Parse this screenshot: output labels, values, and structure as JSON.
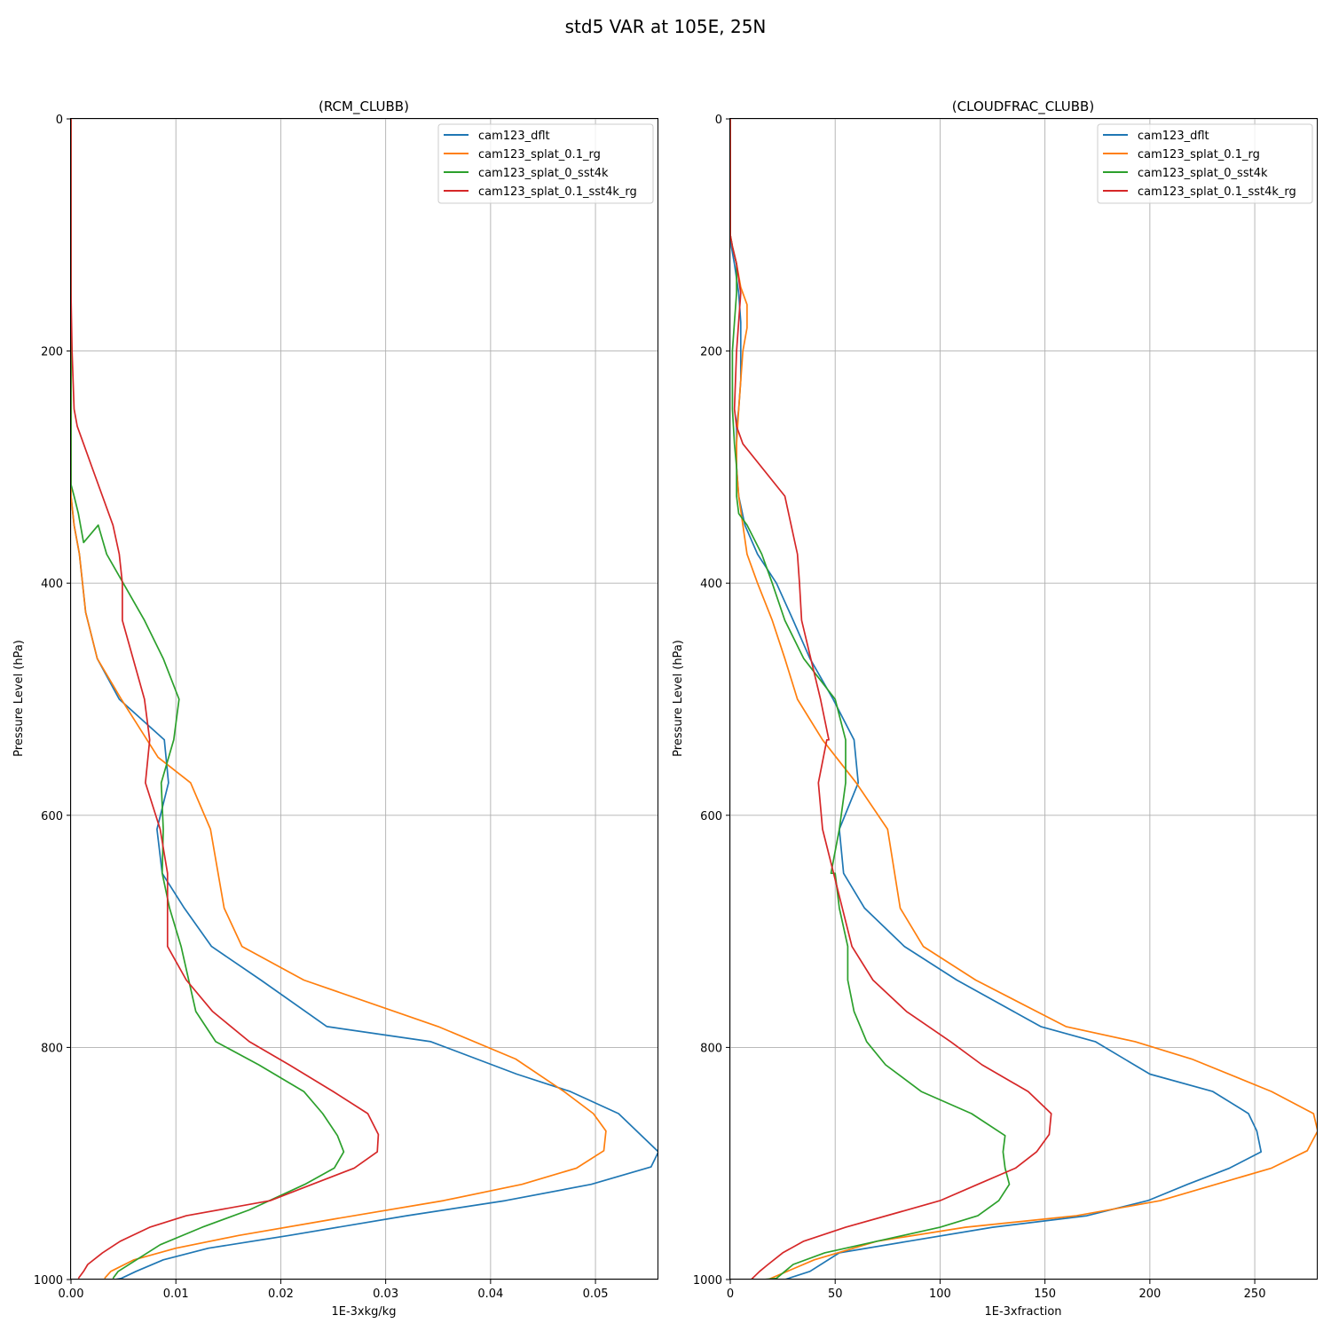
{
  "figure": {
    "title": "std5 VAR at 105E, 25N"
  },
  "colors": {
    "cam123_dflt": "#1f77b4",
    "cam123_splat_0.1_rg": "#ff7f0e",
    "cam123_splat_0_sst4k": "#2ca02c",
    "cam123_splat_0.1_sst4k_rg": "#d62728"
  },
  "chart_data": [
    {
      "type": "line",
      "title": "(RCM_CLUBB)",
      "xlabel": "1E-3xkg/kg",
      "ylabel": "Pressure Level (hPa)",
      "xlim": [
        0,
        0.056
      ],
      "ylim": [
        1000,
        0
      ],
      "y_inverted": true,
      "xticks": [
        0.0,
        0.01,
        0.02,
        0.03,
        0.04,
        0.05
      ],
      "xtick_labels": [
        "0.00",
        "0.01",
        "0.02",
        "0.03",
        "0.04",
        "0.05"
      ],
      "yticks": [
        0,
        200,
        400,
        600,
        800,
        1000
      ],
      "ytick_labels": [
        "0",
        "200",
        "400",
        "600",
        "800",
        "1000"
      ],
      "grid": true,
      "legend": "upper right",
      "series": [
        {
          "name": "cam123_dflt",
          "x": [
            0,
            0,
            0,
            0,
            0,
            0,
            0.0003,
            0.0008,
            0.0014,
            0.0025,
            0.0046,
            0.0089,
            0.0093,
            0.0082,
            0.0087,
            0.0108,
            0.0134,
            0.0181,
            0.0244,
            0.0343,
            0.0425,
            0.0476,
            0.0522,
            0.056,
            0.0553,
            0.0496,
            0.0414,
            0.032,
            0.0208,
            0.0131,
            0.0088,
            0.0062,
            0.0048,
            0.0042
          ],
          "y": [
            0,
            100,
            200,
            250,
            300,
            325,
            350,
            375,
            425,
            465,
            500,
            535,
            572,
            612,
            650,
            680,
            713,
            742,
            782,
            795,
            823,
            838,
            857,
            890,
            903,
            918,
            932,
            945,
            962,
            973,
            983,
            993,
            999,
            1000
          ]
        },
        {
          "name": "cam123_splat_0.1_rg",
          "x": [
            0,
            0,
            0,
            0,
            0,
            0,
            0.0003,
            0.0008,
            0.0014,
            0.0025,
            0.0048,
            0.0062,
            0.0083,
            0.0114,
            0.0133,
            0.0146,
            0.0163,
            0.0222,
            0.035,
            0.0424,
            0.047,
            0.0498,
            0.051,
            0.0508,
            0.0482,
            0.043,
            0.0355,
            0.025,
            0.016,
            0.01,
            0.006,
            0.0038,
            0.0032
          ],
          "y": [
            0,
            100,
            200,
            250,
            300,
            325,
            350,
            375,
            425,
            465,
            500,
            520,
            550,
            572,
            612,
            680,
            713,
            742,
            782,
            810,
            838,
            857,
            872,
            889,
            904,
            918,
            932,
            948,
            962,
            973,
            983,
            993,
            999
          ]
        },
        {
          "name": "cam123_splat_0_sst4k",
          "x": [
            0,
            0,
            0,
            0,
            0,
            0,
            0.0003,
            0.0007,
            0.0012,
            0.0026,
            0.0034,
            0.007,
            0.0088,
            0.0103,
            0.0098,
            0.0086,
            0.0088,
            0.0087,
            0.0094,
            0.0105,
            0.0119,
            0.0138,
            0.0179,
            0.0222,
            0.024,
            0.0254,
            0.026,
            0.0251,
            0.0223,
            0.017,
            0.0125,
            0.0085,
            0.0045,
            0.004
          ],
          "y": [
            0,
            100,
            200,
            250,
            300,
            315,
            325,
            340,
            365,
            350,
            375,
            432,
            465,
            500,
            535,
            572,
            612,
            650,
            680,
            713,
            769,
            795,
            815,
            838,
            857,
            876,
            890,
            904,
            918,
            940,
            955,
            970,
            993,
            999
          ]
        },
        {
          "name": "cam123_splat_0.1_sst4k_rg",
          "x": [
            0,
            0,
            0,
            0.0001,
            0.0003,
            0.0006,
            0.0012,
            0.002,
            0.004,
            0.0046,
            0.0049,
            0.0049,
            0.007,
            0.0075,
            0.0071,
            0.0085,
            0.0092,
            0.0092,
            0.011,
            0.0135,
            0.017,
            0.0208,
            0.025,
            0.0283,
            0.0293,
            0.0292,
            0.027,
            0.023,
            0.019,
            0.011,
            0.0075,
            0.0047,
            0.003,
            0.0016,
            0.0012,
            0.0007
          ],
          "y": [
            0,
            100,
            150,
            200,
            250,
            265,
            280,
            300,
            350,
            375,
            400,
            432,
            500,
            535,
            572,
            612,
            650,
            713,
            742,
            769,
            795,
            815,
            838,
            857,
            875,
            890,
            904,
            918,
            932,
            945,
            955,
            967,
            977,
            987,
            993,
            999
          ]
        }
      ]
    },
    {
      "type": "line",
      "title": "(CLOUDFRAC_CLUBB)",
      "xlabel": "1E-3xfraction",
      "ylabel": "Pressure Level (hPa)",
      "xlim": [
        0,
        280
      ],
      "ylim": [
        1000,
        0
      ],
      "y_inverted": true,
      "xticks": [
        0,
        50,
        100,
        150,
        200,
        250
      ],
      "xtick_labels": [
        "0",
        "50",
        "100",
        "150",
        "200",
        "250"
      ],
      "yticks": [
        0,
        200,
        400,
        600,
        800,
        1000
      ],
      "ytick_labels": [
        "0",
        "200",
        "400",
        "600",
        "800",
        "1000"
      ],
      "grid": true,
      "legend": "upper right",
      "series": [
        {
          "name": "cam123_dflt",
          "x": [
            0,
            0,
            0,
            0.5,
            2,
            4,
            5,
            5,
            5,
            4,
            3,
            3,
            3,
            4,
            7,
            13,
            22,
            30,
            38,
            49,
            59,
            61,
            52,
            54,
            64,
            83,
            108,
            148,
            174,
            200,
            230,
            247,
            251,
            253,
            238,
            218,
            199,
            170,
            125,
            85,
            52,
            38,
            26
          ],
          "y": [
            0,
            50,
            100,
            110,
            125,
            150,
            175,
            200,
            225,
            250,
            265,
            280,
            300,
            325,
            350,
            375,
            400,
            432,
            465,
            500,
            535,
            572,
            612,
            650,
            680,
            713,
            742,
            782,
            795,
            823,
            838,
            857,
            872,
            890,
            904,
            918,
            932,
            945,
            955,
            967,
            977,
            993,
            1000
          ]
        },
        {
          "name": "cam123_splat_0.1_rg",
          "x": [
            0,
            0,
            0,
            1,
            3,
            5,
            8,
            8,
            6,
            4,
            3,
            3,
            4,
            6,
            8,
            13,
            20,
            26,
            32,
            44,
            60,
            75,
            81,
            92,
            117,
            160,
            193,
            220,
            258,
            278,
            280,
            275,
            258,
            205,
            165,
            112,
            70,
            40,
            18
          ],
          "y": [
            0,
            50,
            100,
            110,
            125,
            145,
            160,
            180,
            200,
            250,
            280,
            300,
            325,
            350,
            375,
            400,
            432,
            465,
            500,
            535,
            572,
            612,
            680,
            713,
            742,
            782,
            795,
            810,
            838,
            857,
            872,
            889,
            904,
            932,
            945,
            955,
            967,
            983,
            1000
          ]
        },
        {
          "name": "cam123_splat_0_sst4k",
          "x": [
            0,
            0,
            0,
            1,
            3,
            3,
            2,
            1,
            1,
            2,
            3,
            3,
            4,
            8,
            15,
            20,
            26,
            35,
            50,
            55,
            55,
            52,
            48,
            50,
            52,
            56,
            56,
            59,
            65,
            74,
            91,
            115,
            131,
            130,
            131,
            133,
            128,
            118,
            100,
            70,
            45,
            30,
            22,
            16
          ],
          "y": [
            0,
            50,
            100,
            110,
            125,
            150,
            175,
            200,
            250,
            280,
            300,
            325,
            340,
            350,
            375,
            400,
            432,
            465,
            500,
            535,
            572,
            612,
            650,
            650,
            680,
            713,
            742,
            769,
            795,
            815,
            838,
            857,
            876,
            890,
            904,
            918,
            932,
            945,
            955,
            967,
            977,
            987,
            999,
            1000
          ]
        },
        {
          "name": "cam123_splat_0.1_sst4k_rg",
          "x": [
            0,
            0,
            0,
            1,
            3,
            5,
            3,
            2,
            3,
            6,
            26,
            29,
            32,
            33,
            34,
            43,
            47,
            46,
            42,
            44,
            58,
            68,
            84,
            105,
            120,
            142,
            153,
            152,
            146,
            136,
            118,
            100,
            55,
            35,
            25,
            18,
            14,
            10
          ],
          "y": [
            0,
            50,
            100,
            110,
            125,
            150,
            200,
            250,
            265,
            280,
            325,
            350,
            375,
            400,
            432,
            500,
            535,
            535,
            572,
            612,
            713,
            742,
            769,
            795,
            815,
            838,
            857,
            875,
            890,
            904,
            918,
            932,
            955,
            967,
            977,
            987,
            993,
            1000
          ]
        }
      ]
    }
  ]
}
